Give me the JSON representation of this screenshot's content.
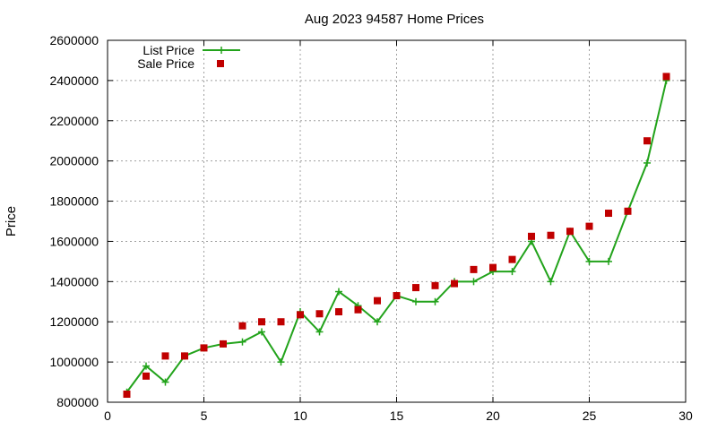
{
  "chart_data": {
    "type": "line",
    "title": "Aug 2023 94587 Home Prices",
    "xlabel": "",
    "ylabel": "Price",
    "xlim": [
      0,
      30
    ],
    "ylim": [
      800000,
      2600000
    ],
    "x_ticks": [
      0,
      5,
      10,
      15,
      20,
      25,
      30
    ],
    "y_ticks": [
      800000,
      1000000,
      1200000,
      1400000,
      1600000,
      1800000,
      2000000,
      2200000,
      2400000,
      2600000
    ],
    "grid": true,
    "legend_position": "top-left",
    "x": [
      1,
      2,
      3,
      4,
      5,
      6,
      7,
      8,
      9,
      10,
      11,
      12,
      13,
      14,
      15,
      16,
      17,
      18,
      19,
      20,
      21,
      22,
      23,
      24,
      25,
      26,
      27,
      28,
      29
    ],
    "series": [
      {
        "name": "List Price",
        "style": "linespoints",
        "marker": "plus",
        "color": "#22a31b",
        "values": [
          850000,
          980000,
          900000,
          1030000,
          1070000,
          1090000,
          1100000,
          1150000,
          1000000,
          1250000,
          1150000,
          1350000,
          1280000,
          1200000,
          1330000,
          1300000,
          1300000,
          1400000,
          1400000,
          1450000,
          1450000,
          1600000,
          1400000,
          1650000,
          1500000,
          1500000,
          1750000,
          1990000,
          2400000
        ]
      },
      {
        "name": "Sale Price",
        "style": "points",
        "marker": "square",
        "color": "#c00000",
        "values": [
          840000,
          930000,
          1030000,
          1030000,
          1070000,
          1090000,
          1180000,
          1200000,
          1200000,
          1235000,
          1240000,
          1250000,
          1260000,
          1305000,
          1330000,
          1370000,
          1380000,
          1390000,
          1460000,
          1470000,
          1510000,
          1625000,
          1630000,
          1650000,
          1675000,
          1740000,
          1750000,
          2100000,
          2420000
        ]
      }
    ]
  }
}
